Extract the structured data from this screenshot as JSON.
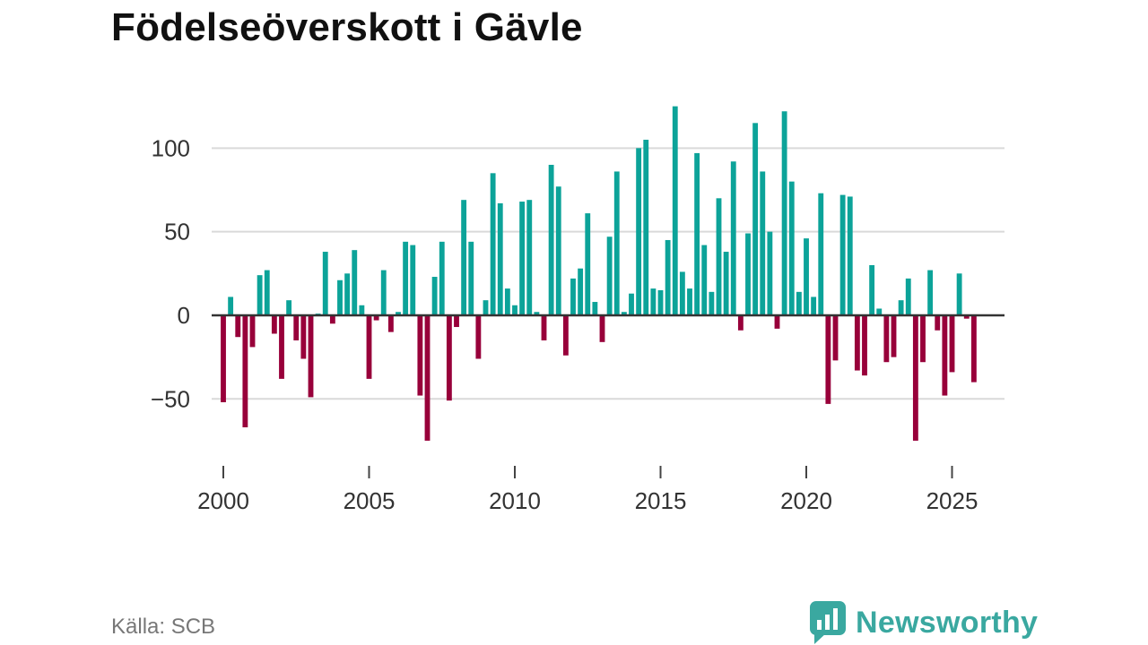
{
  "chart_data": {
    "type": "bar",
    "title": "Födelseöverskott i Gävle",
    "source": "Källa: SCB",
    "brand": "Newsworthy",
    "xlabel": "",
    "ylabel": "",
    "x_start": 2000,
    "x_step": 0.25,
    "xlim": [
      1999.6,
      2026.8
    ],
    "ylim": [
      -82,
      135
    ],
    "yticks": [
      100,
      50,
      0,
      -50
    ],
    "ytick_labels": [
      "100",
      "50",
      "0",
      "−50"
    ],
    "xticks": [
      2000,
      2005,
      2010,
      2015,
      2020,
      2025
    ],
    "xtick_labels": [
      "2000",
      "2005",
      "2010",
      "2015",
      "2020",
      "2025"
    ],
    "grid": true,
    "colors": {
      "positive": "#0ca399",
      "negative": "#98003a",
      "grid": "#d9d9d9",
      "zero": "#333333",
      "axis": "#444444",
      "text": "#333333"
    },
    "values": [
      -52,
      11,
      -13,
      -67,
      -19,
      24,
      27,
      -11,
      -38,
      9,
      -15,
      -26,
      -49,
      1,
      38,
      -5,
      21,
      25,
      39,
      6,
      -38,
      -3,
      27,
      -10,
      2,
      44,
      42,
      -48,
      -75,
      23,
      44,
      -51,
      -7,
      69,
      44,
      -26,
      9,
      85,
      67,
      16,
      6,
      68,
      69,
      2,
      -15,
      90,
      77,
      -24,
      22,
      28,
      61,
      8,
      -16,
      47,
      86,
      2,
      13,
      100,
      105,
      16,
      15,
      45,
      125,
      26,
      16,
      97,
      42,
      14,
      70,
      38,
      92,
      -9,
      49,
      115,
      86,
      50,
      -8,
      122,
      80,
      14,
      46,
      11,
      73,
      -53,
      -27,
      72,
      71,
      -33,
      -36,
      30,
      4,
      -28,
      -25,
      9,
      22,
      -75,
      -28,
      27,
      -9,
      -48,
      -34,
      25,
      -2,
      -40
    ]
  }
}
